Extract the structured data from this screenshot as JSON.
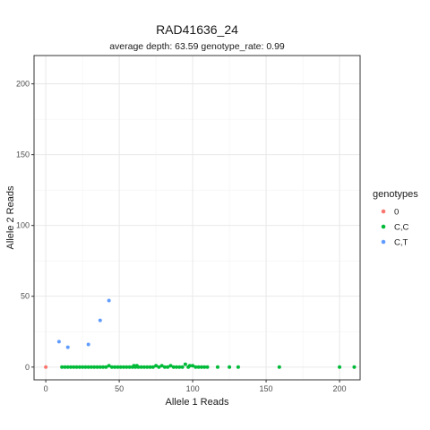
{
  "chart_data": {
    "type": "scatter",
    "title": "RAD41636_24",
    "subtitle": "average depth:  63.59  genotype_rate:  0.99",
    "xlabel": "Allele 1 Reads",
    "ylabel": "Allele 2 Reads",
    "xlim": [
      -8,
      214
    ],
    "ylim": [
      -9,
      220
    ],
    "xticks": [
      0,
      50,
      100,
      150,
      200
    ],
    "yticks": [
      0,
      50,
      100,
      150,
      200
    ],
    "grid": true,
    "legend": {
      "title": "genotypes",
      "placement": "right",
      "entries": [
        {
          "label": "0",
          "color": "#F8766D"
        },
        {
          "label": "C,C",
          "color": "#00BA38"
        },
        {
          "label": "C,T",
          "color": "#619CFF"
        }
      ]
    },
    "series": [
      {
        "name": "0",
        "color": "#F8766D",
        "points": [
          [
            0,
            0
          ]
        ]
      },
      {
        "name": "C,C",
        "color": "#00BA38",
        "points": [
          [
            11,
            0
          ],
          [
            13,
            0
          ],
          [
            15,
            0
          ],
          [
            17,
            0
          ],
          [
            19,
            0
          ],
          [
            21,
            0
          ],
          [
            23,
            0
          ],
          [
            25,
            0
          ],
          [
            27,
            0
          ],
          [
            29,
            0
          ],
          [
            31,
            0
          ],
          [
            33,
            0
          ],
          [
            35,
            0
          ],
          [
            37,
            0
          ],
          [
            39,
            0
          ],
          [
            41,
            0
          ],
          [
            43,
            1
          ],
          [
            45,
            0
          ],
          [
            47,
            0
          ],
          [
            49,
            0
          ],
          [
            51,
            0
          ],
          [
            53,
            0
          ],
          [
            55,
            0
          ],
          [
            57,
            0
          ],
          [
            59,
            0
          ],
          [
            60,
            1
          ],
          [
            61,
            0
          ],
          [
            62,
            1
          ],
          [
            63,
            0
          ],
          [
            65,
            0
          ],
          [
            67,
            0
          ],
          [
            69,
            0
          ],
          [
            71,
            0
          ],
          [
            73,
            0
          ],
          [
            75,
            1
          ],
          [
            77,
            0
          ],
          [
            79,
            1
          ],
          [
            81,
            0
          ],
          [
            83,
            0
          ],
          [
            85,
            1
          ],
          [
            87,
            0
          ],
          [
            89,
            0
          ],
          [
            91,
            0
          ],
          [
            93,
            0
          ],
          [
            95,
            2
          ],
          [
            97,
            0
          ],
          [
            98,
            1
          ],
          [
            100,
            1
          ],
          [
            102,
            0
          ],
          [
            104,
            0
          ],
          [
            106,
            0
          ],
          [
            108,
            0
          ],
          [
            110,
            0
          ],
          [
            117,
            0
          ],
          [
            125,
            0
          ],
          [
            131,
            0
          ],
          [
            159,
            0
          ],
          [
            200,
            0
          ],
          [
            210,
            0
          ]
        ]
      },
      {
        "name": "C,T",
        "color": "#619CFF",
        "points": [
          [
            9,
            18
          ],
          [
            15,
            14
          ],
          [
            29,
            16
          ],
          [
            37,
            33
          ],
          [
            43,
            47
          ]
        ]
      }
    ]
  }
}
